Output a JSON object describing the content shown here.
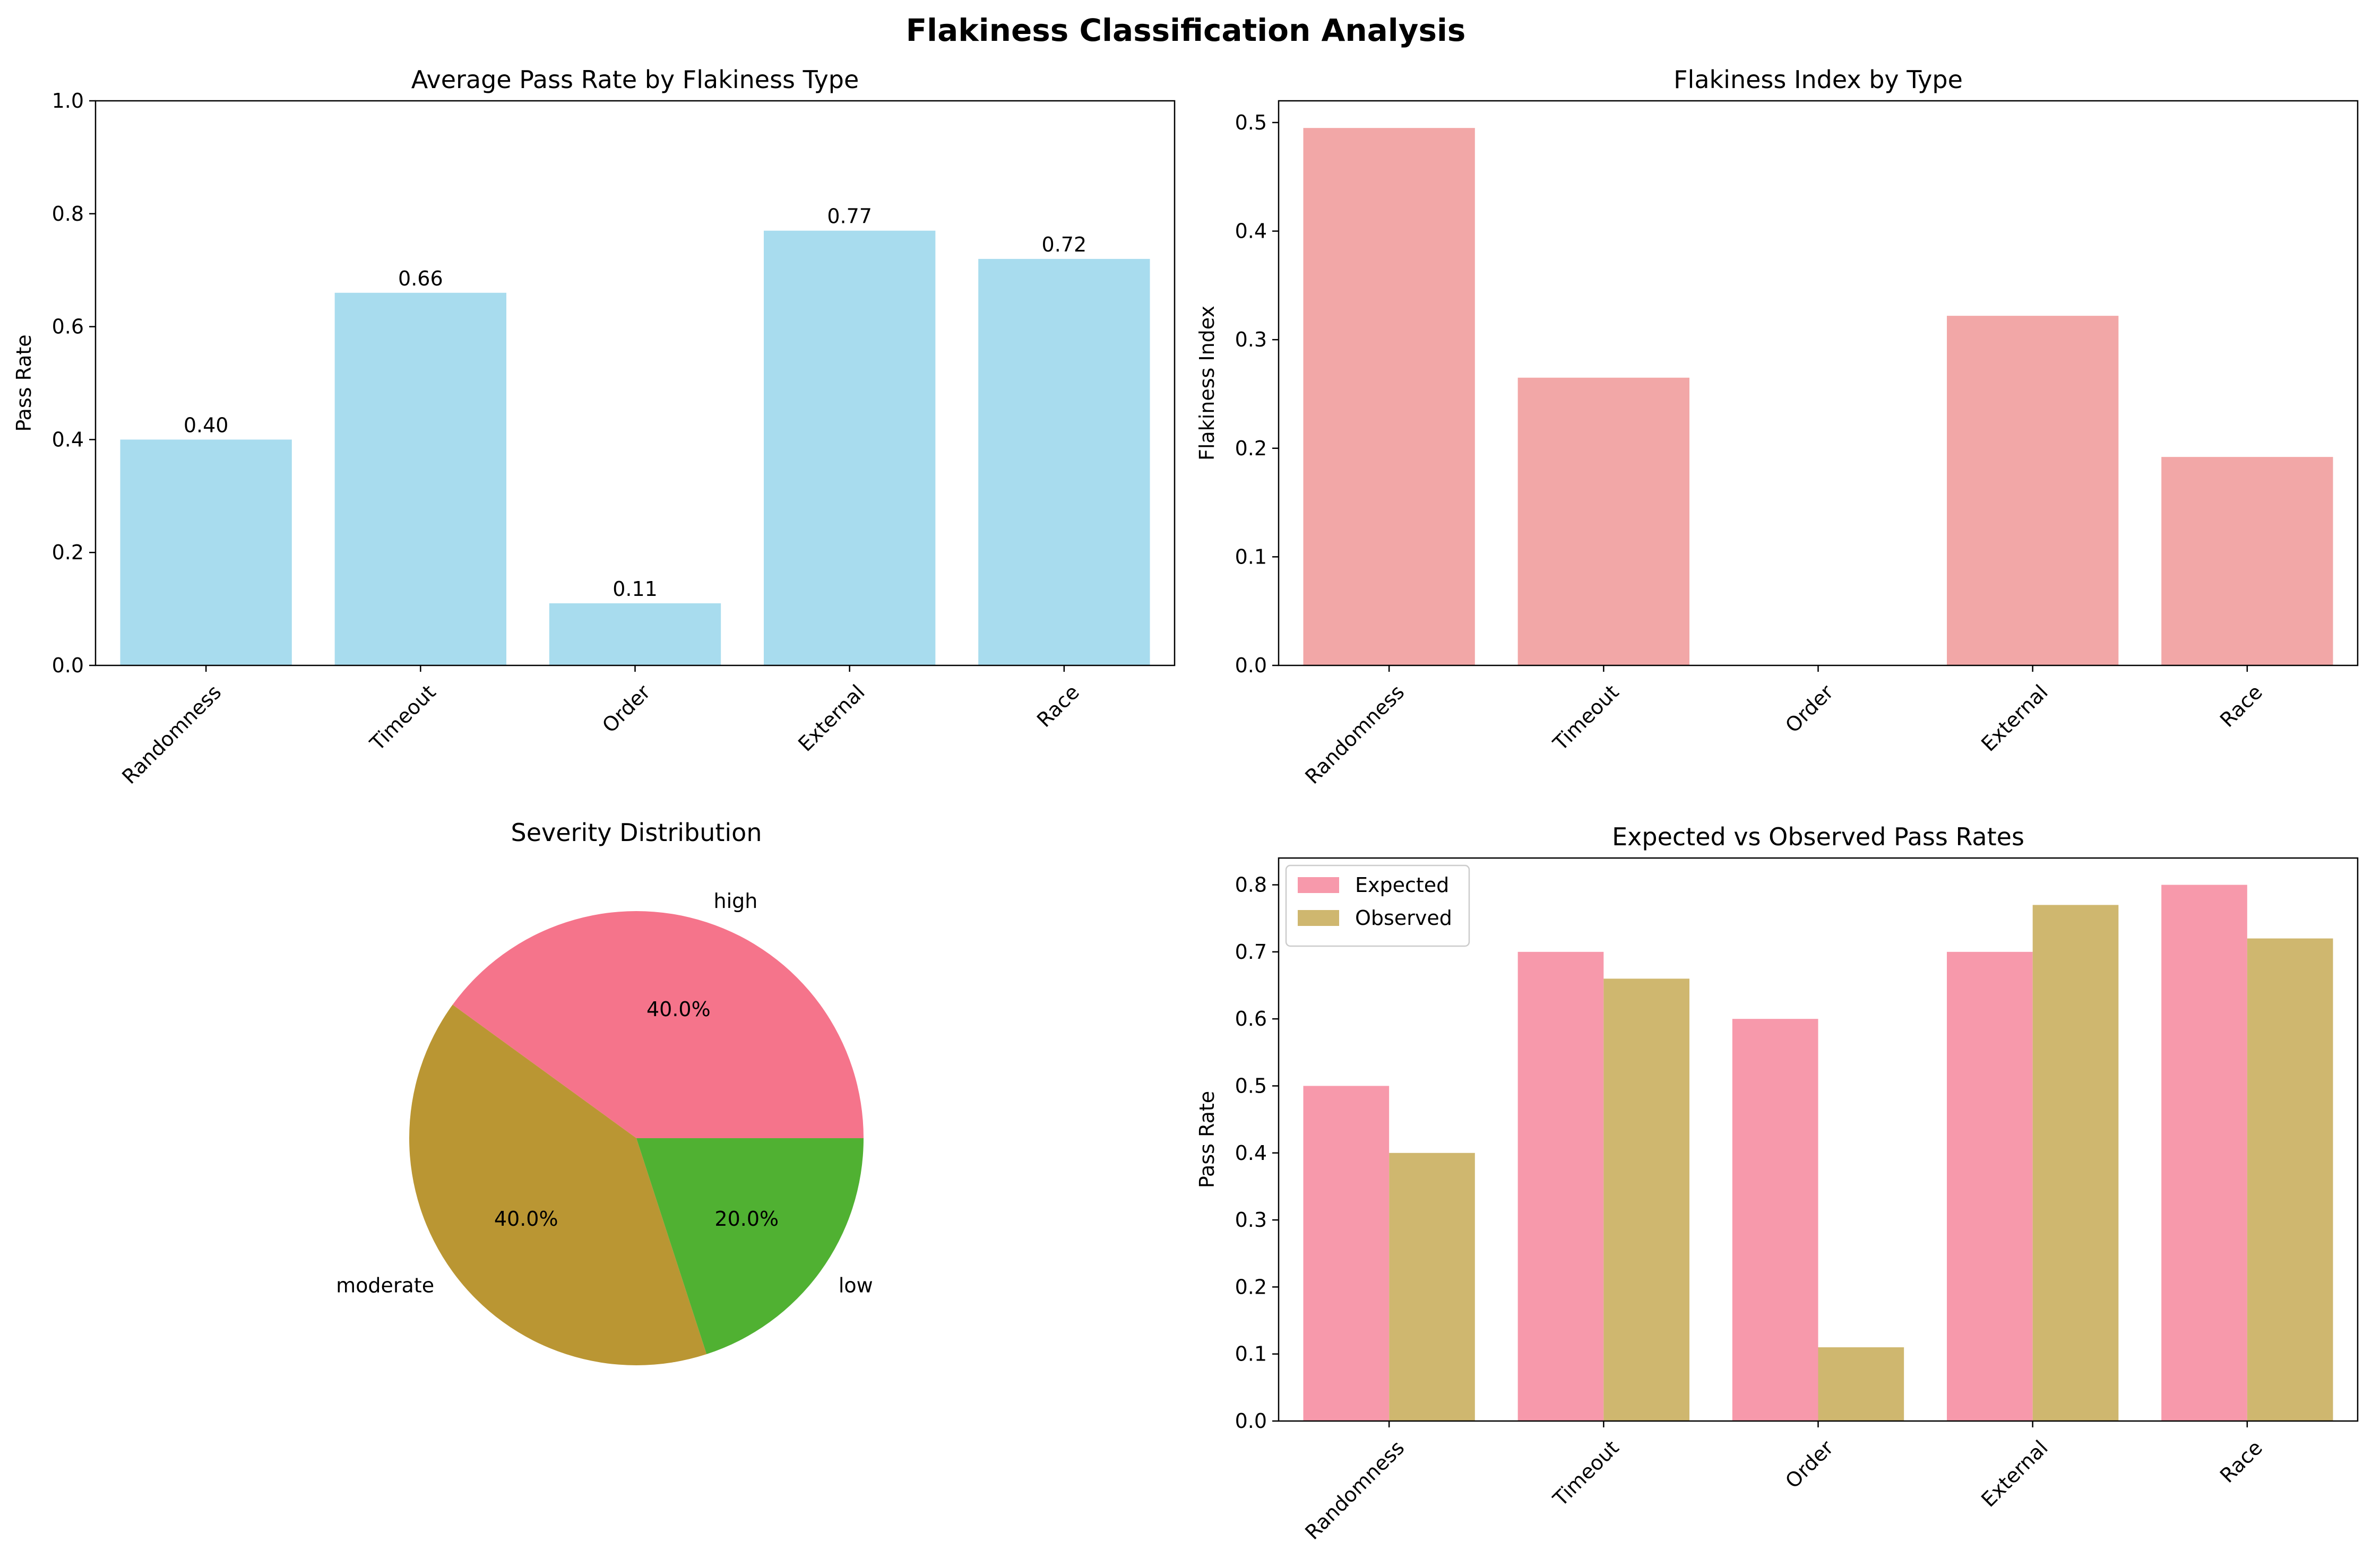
{
  "figure_title": "Flakiness Classification Analysis",
  "colors": {
    "pass_rate_bar": "#a8dcee",
    "flakiness_bar": "#f2a7a7",
    "expected": "#f799ab",
    "observed": "#cfb76f",
    "pie_high": "#f5748b",
    "pie_moderate": "#ba9633",
    "pie_low": "#50b132"
  },
  "chart_data": [
    {
      "type": "bar",
      "title": "Average Pass Rate by Flakiness Type",
      "xlabel": "",
      "ylabel": "Pass Rate",
      "categories": [
        "Randomness",
        "Timeout",
        "Order",
        "External",
        "Race"
      ],
      "values": [
        0.4,
        0.66,
        0.11,
        0.77,
        0.72
      ],
      "data_labels": [
        "0.40",
        "0.66",
        "0.11",
        "0.77",
        "0.72"
      ],
      "ylim": [
        0,
        1.0
      ],
      "yticks": [
        "0.0",
        "0.2",
        "0.4",
        "0.6",
        "0.8",
        "1.0"
      ],
      "grid": false
    },
    {
      "type": "bar",
      "title": "Flakiness Index by Type",
      "xlabel": "",
      "ylabel": "Flakiness Index",
      "categories": [
        "Randomness",
        "Timeout",
        "Order",
        "External",
        "Race"
      ],
      "values": [
        0.495,
        0.265,
        0.0,
        0.322,
        0.192
      ],
      "ylim": [
        0,
        0.52
      ],
      "yticks": [
        "0.0",
        "0.1",
        "0.2",
        "0.3",
        "0.4",
        "0.5"
      ],
      "grid": false
    },
    {
      "type": "pie",
      "title": "Severity Distribution",
      "slices": [
        {
          "label": "high",
          "value": 40.0,
          "pct_label": "40.0%"
        },
        {
          "label": "moderate",
          "value": 40.0,
          "pct_label": "40.0%"
        },
        {
          "label": "low",
          "value": 20.0,
          "pct_label": "20.0%"
        }
      ]
    },
    {
      "type": "bar",
      "title": "Expected vs Observed Pass Rates",
      "xlabel": "",
      "ylabel": "Pass Rate",
      "categories": [
        "Randomness",
        "Timeout",
        "Order",
        "External",
        "Race"
      ],
      "series": [
        {
          "name": "Expected",
          "values": [
            0.5,
            0.7,
            0.6,
            0.7,
            0.8
          ]
        },
        {
          "name": "Observed",
          "values": [
            0.4,
            0.66,
            0.11,
            0.77,
            0.72
          ]
        }
      ],
      "ylim": [
        0,
        0.84
      ],
      "yticks": [
        "0.0",
        "0.1",
        "0.2",
        "0.3",
        "0.4",
        "0.5",
        "0.6",
        "0.7",
        "0.8"
      ],
      "legend": "top-left",
      "grid": false
    }
  ]
}
